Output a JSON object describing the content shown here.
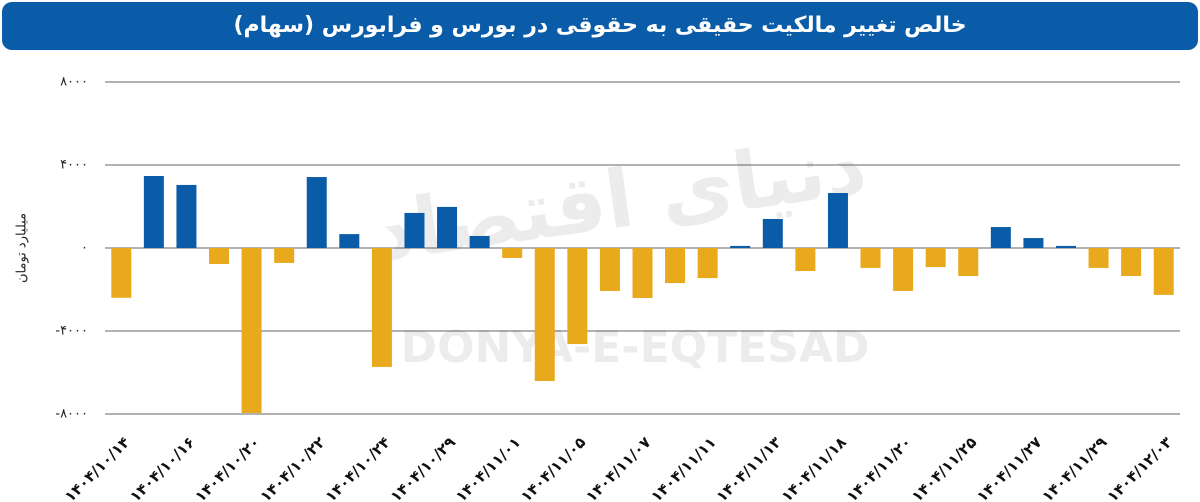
{
  "chart_data": {
    "type": "bar",
    "title": "خالص تغییر مالکیت حقیقی به حقوقی در بورس و فرابورس (سهام)",
    "y_label": "میلیارد تومان",
    "watermark": [
      "دنیای اقتصاد",
      "DONYA-E-EQTESAD"
    ],
    "categories": [
      "۱۴۰۴/۱۰/۱۴",
      null,
      "۱۴۰۴/۱۰/۱۶",
      null,
      "۱۴۰۴/۱۰/۲۰",
      null,
      "۱۴۰۴/۱۰/۲۲",
      null,
      "۱۴۰۴/۱۰/۲۴",
      null,
      "۱۴۰۴/۱۰/۲۹",
      null,
      "۱۴۰۴/۱۱/۰۱",
      null,
      "۱۴۰۴/۱۱/۰۵",
      null,
      "۱۴۰۴/۱۱/۰۷",
      null,
      "۱۴۰۴/۱۱/۱۱",
      null,
      "۱۴۰۴/۱۱/۱۳",
      null,
      "۱۴۰۴/۱۱/۱۸",
      null,
      "۱۴۰۴/۱۱/۲۰",
      null,
      "۱۴۰۴/۱۱/۲۵",
      null,
      "۱۴۰۴/۱۱/۲۷",
      null,
      "۱۴۰۴/۱۱/۲۹",
      null,
      "۱۴۰۴/۱۲/۰۳"
    ],
    "values": [
      -2400,
      3470,
      3040,
      -770,
      -7950,
      -720,
      3420,
      670,
      -5730,
      1690,
      1980,
      580,
      -480,
      -6410,
      -4630,
      -2070,
      -2410,
      -1690,
      -1450,
      100,
      1400,
      -1110,
      2650,
      -960,
      -2070,
      -920,
      -1350,
      1010,
      480,
      100,
      -960,
      -1350,
      -2260
    ],
    "colors": {
      "positive": "#0b5ca8",
      "negative": "#e9a91c"
    },
    "ylim": [
      -8000,
      8000
    ],
    "yticks": [
      {
        "value": -8000,
        "label": "-۸۰۰۰"
      },
      {
        "value": -4000,
        "label": "-۴۰۰۰"
      },
      {
        "value": 0,
        "label": "۰"
      },
      {
        "value": 4000,
        "label": "۴۰۰۰"
      },
      {
        "value": 8000,
        "label": "۸۰۰۰"
      }
    ],
    "grid": true
  }
}
